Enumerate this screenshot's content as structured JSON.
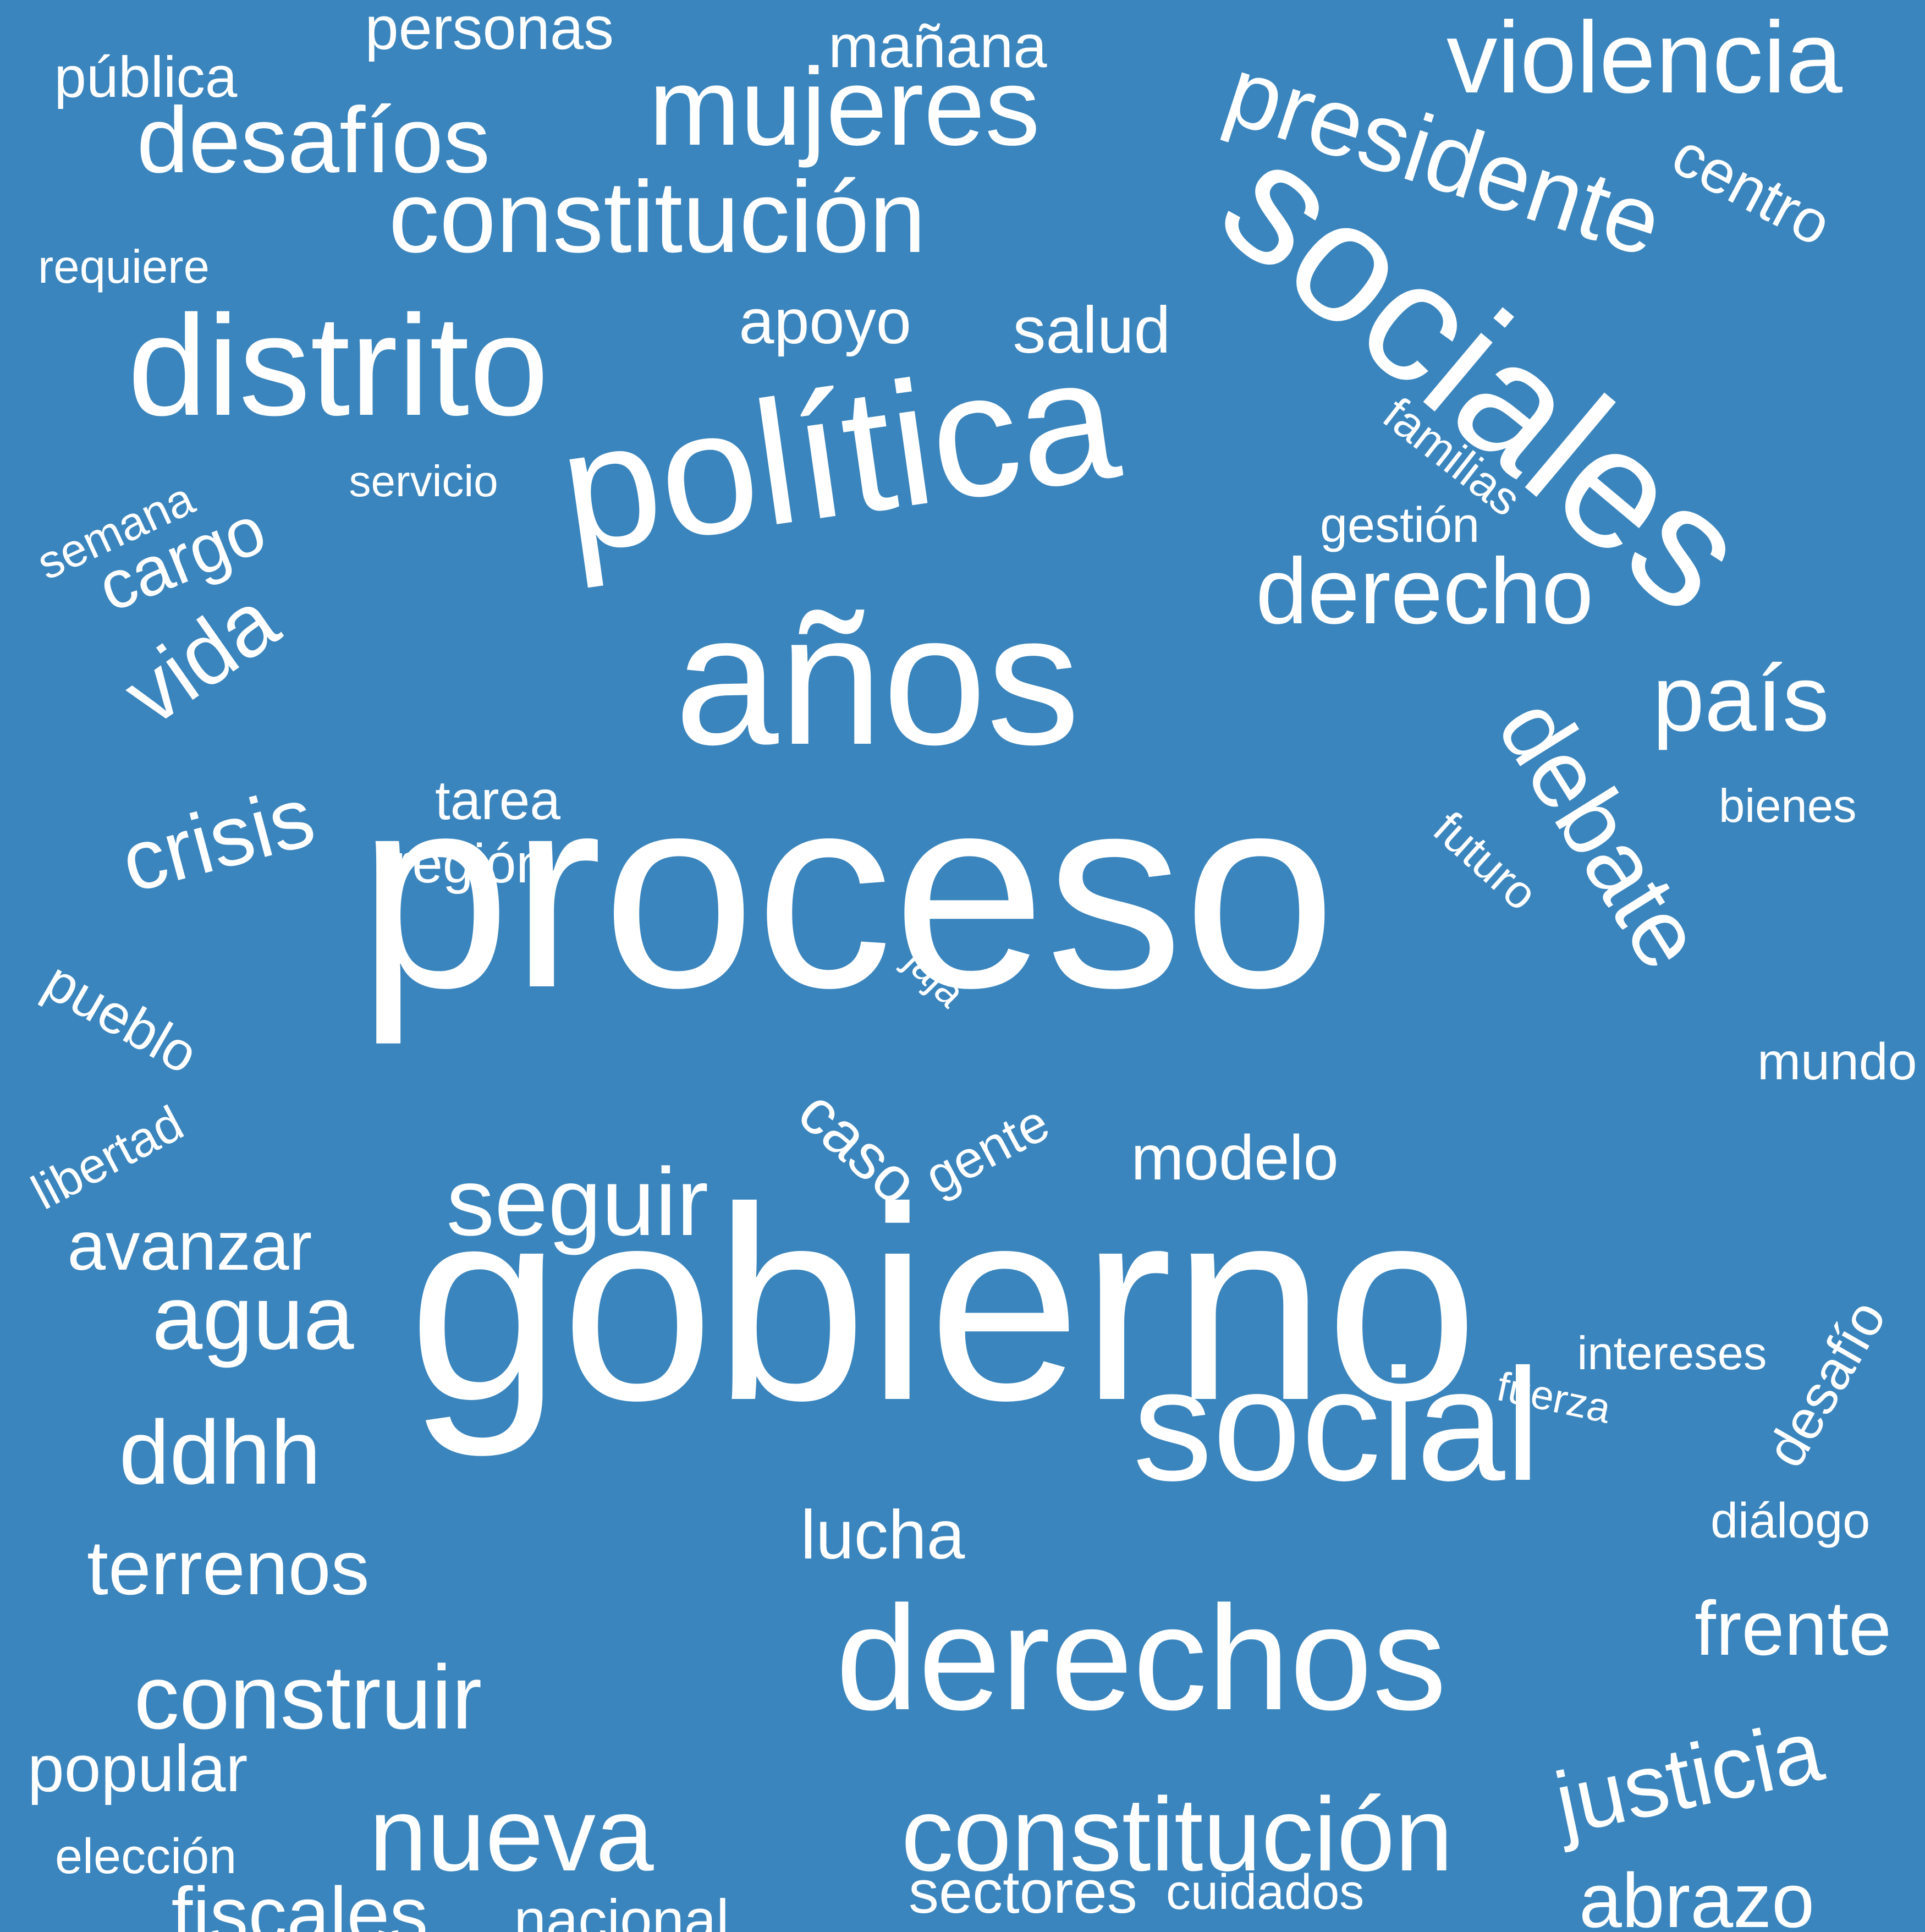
{
  "background_color": "#3a85bd",
  "text_color": "#ffffff",
  "words": [
    {
      "text": "proceso"
    },
    {
      "text": "gobierno"
    },
    {
      "text": "años"
    },
    {
      "text": "política"
    },
    {
      "text": "sociales"
    },
    {
      "text": "social"
    },
    {
      "text": "derechos"
    },
    {
      "text": "distrito"
    },
    {
      "text": "constitución"
    },
    {
      "text": "mujeres"
    },
    {
      "text": "presidente"
    },
    {
      "text": "violencia"
    },
    {
      "text": "desafíos"
    },
    {
      "text": "derecho"
    },
    {
      "text": "debate"
    },
    {
      "text": "país"
    },
    {
      "text": "vida"
    },
    {
      "text": "crisis"
    },
    {
      "text": "cargo"
    },
    {
      "text": "seguir"
    },
    {
      "text": "agua"
    },
    {
      "text": "ddhh"
    },
    {
      "text": "terrenos"
    },
    {
      "text": "construir"
    },
    {
      "text": "nueva"
    },
    {
      "text": "constitución"
    },
    {
      "text": "justicia"
    },
    {
      "text": "abrazo"
    },
    {
      "text": "frente"
    },
    {
      "text": "fiscales"
    },
    {
      "text": "nacional"
    },
    {
      "text": "sectores"
    },
    {
      "text": "cuidados"
    },
    {
      "text": "personas"
    },
    {
      "text": "pública"
    },
    {
      "text": "mañana"
    },
    {
      "text": "centro"
    },
    {
      "text": "requiere"
    },
    {
      "text": "apoyo"
    },
    {
      "text": "salud"
    },
    {
      "text": "familias"
    },
    {
      "text": "servicio"
    },
    {
      "text": "semana"
    },
    {
      "text": "gestión"
    },
    {
      "text": "tarea"
    },
    {
      "text": "región"
    },
    {
      "text": "futuro"
    },
    {
      "text": "bienes"
    },
    {
      "text": "jaja"
    },
    {
      "text": "pueblo"
    },
    {
      "text": "mundo"
    },
    {
      "text": "libertad"
    },
    {
      "text": "caso"
    },
    {
      "text": "gente"
    },
    {
      "text": "modelo"
    },
    {
      "text": "avanzar"
    },
    {
      "text": "intereses"
    },
    {
      "text": "desafío"
    },
    {
      "text": "fuerza"
    },
    {
      "text": "diálogo"
    },
    {
      "text": "lucha"
    },
    {
      "text": "popular"
    },
    {
      "text": "elección"
    }
  ]
}
